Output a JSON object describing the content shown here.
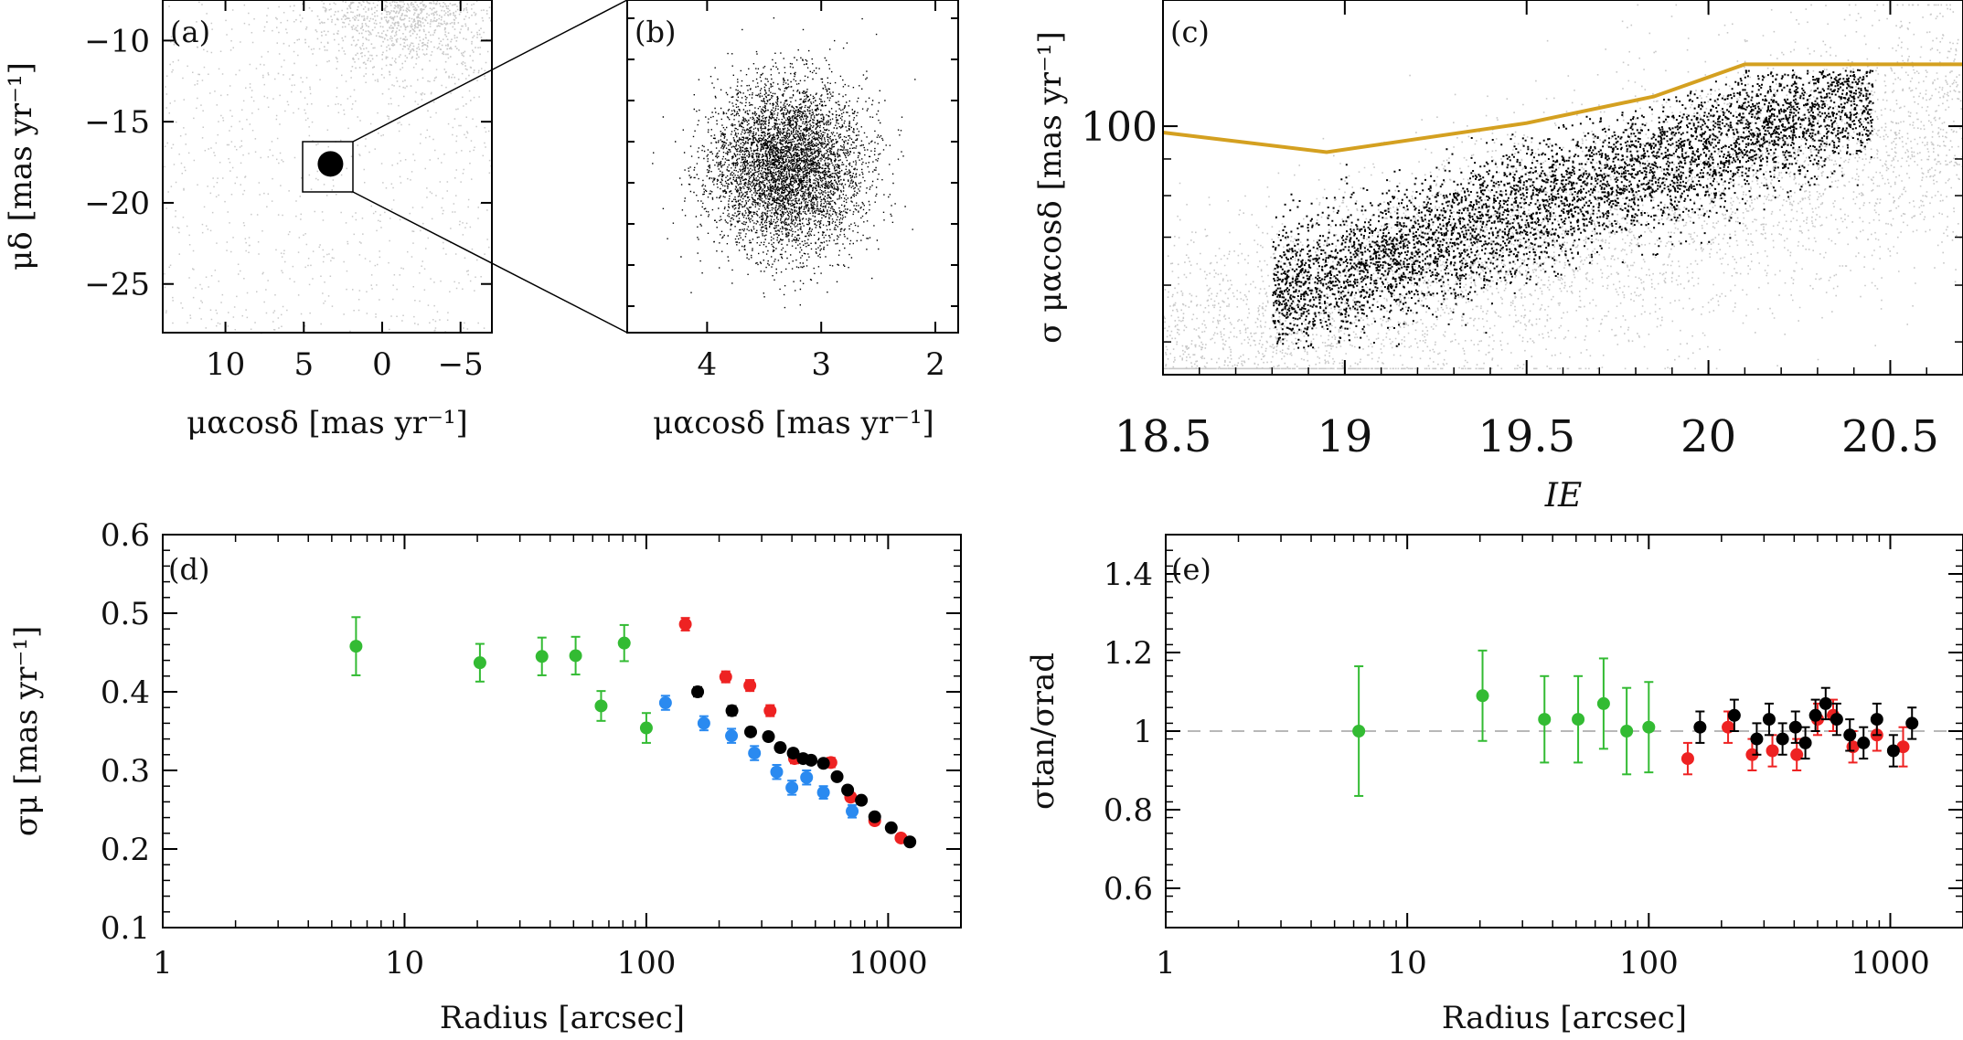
{
  "panels": {
    "a": {
      "letter": "(a)",
      "xlabel": "μαcosδ [mas yr⁻¹]",
      "ylabel": "μδ [mas yr⁻¹]"
    },
    "b": {
      "letter": "(b)",
      "xlabel": "μαcosδ [mas yr⁻¹]"
    },
    "c": {
      "letter": "(c)",
      "xlabel": "IE",
      "ylabel": "σ μαcosδ [mas yr⁻¹]"
    },
    "d": {
      "letter": "(d)",
      "xlabel": "Radius [arcsec]",
      "ylabel": "σμ [mas yr⁻¹]"
    },
    "e": {
      "letter": "(e)",
      "xlabel": "Radius [arcsec]",
      "ylabel": "σtan/σrad"
    }
  },
  "chart_data": [
    {
      "id": "a",
      "type": "scatter",
      "letter": "(a)",
      "xlabel": "μαcosδ [mas yr⁻¹]",
      "ylabel": "μδ [mas yr⁻¹]",
      "xlim": [
        14,
        -7
      ],
      "ylim": [
        -28,
        -7.5
      ],
      "xticks": [
        10,
        5,
        0,
        -5
      ],
      "yticks": [
        -10,
        -15,
        -20,
        -25
      ],
      "series": [
        {
          "role": "field",
          "color": "#c8c8c8",
          "center": [
            -1.5,
            -8.0
          ]
        },
        {
          "role": "cluster",
          "color": "#000000",
          "center": [
            3.3,
            -17.6
          ]
        }
      ],
      "zoom_box": {
        "x": [
          2.3,
          4.6
        ],
        "y": [
          -19.6,
          -15.6
        ]
      }
    },
    {
      "id": "b",
      "type": "scatter",
      "letter": "(b)",
      "xlabel": "μαcosδ [mas yr⁻¹]",
      "xlim": [
        4.7,
        1.8
      ],
      "ylim": [
        -19.6,
        -15.6
      ],
      "xticks": [
        4,
        3,
        2
      ],
      "series": [
        {
          "role": "cluster",
          "color": "#000000",
          "center": [
            3.3,
            -17.6
          ]
        }
      ]
    },
    {
      "id": "c",
      "type": "scatter",
      "letter": "(c)",
      "xlabel": "IE",
      "ylabel": "σ μαcosδ [mas yr⁻¹]",
      "xlim": [
        18.5,
        20.7
      ],
      "ylim_log": [
        45,
        150
      ],
      "xticks": [
        18.5,
        19,
        19.5,
        20,
        20.5
      ],
      "yticks": [
        100
      ],
      "cut_line": {
        "color": "#d4a020",
        "points": [
          [
            18.5,
            98
          ],
          [
            18.95,
            92
          ],
          [
            19.5,
            101
          ],
          [
            19.85,
            110
          ],
          [
            20.1,
            122
          ],
          [
            20.7,
            122
          ]
        ]
      }
    },
    {
      "id": "d",
      "type": "scatter",
      "letter": "(d)",
      "xlabel": "Radius [arcsec]",
      "ylabel": "σμ [mas yr⁻¹]",
      "xscale": "log",
      "xlim": [
        1,
        2000
      ],
      "ylim": [
        0.1,
        0.6
      ],
      "xticks": [
        1,
        10,
        100,
        1000
      ],
      "yticks": [
        0.1,
        0.2,
        0.3,
        0.4,
        0.5,
        0.6
      ],
      "series": [
        {
          "color": "#33bb33",
          "x": [
            6.3,
            20.5,
            37,
            51,
            65,
            81,
            100
          ],
          "y": [
            0.458,
            0.437,
            0.445,
            0.446,
            0.382,
            0.462,
            0.354
          ],
          "err": [
            0.037,
            0.024,
            0.024,
            0.024,
            0.019,
            0.023,
            0.019
          ]
        },
        {
          "color": "#2a8af0",
          "x": [
            120,
            173,
            225,
            280,
            346,
            400,
            460,
            540,
            710
          ],
          "y": [
            0.386,
            0.36,
            0.344,
            0.322,
            0.298,
            0.278,
            0.291,
            0.272,
            0.248
          ],
          "err": [
            0.009,
            0.009,
            0.009,
            0.009,
            0.009,
            0.009,
            0.009,
            0.008,
            0.008
          ]
        },
        {
          "color": "#ee2222",
          "x": [
            145,
            213,
            268,
            325,
            410,
            580,
            700,
            880,
            1130
          ],
          "y": [
            0.486,
            0.419,
            0.408,
            0.376,
            0.315,
            0.31,
            0.266,
            0.236,
            0.214
          ],
          "err": [
            0.008,
            0.007,
            0.007,
            0.007,
            0.006,
            0.006,
            0.005,
            0.005,
            0.004
          ]
        },
        {
          "color": "#000000",
          "x": [
            163,
            226,
            270,
            320,
            358,
            405,
            445,
            480,
            540,
            615,
            680,
            775,
            880,
            1030,
            1230
          ],
          "y": [
            0.4,
            0.376,
            0.349,
            0.343,
            0.329,
            0.322,
            0.315,
            0.313,
            0.309,
            0.292,
            0.275,
            0.262,
            0.241,
            0.227,
            0.209
          ],
          "err": [
            0.006,
            0.006,
            0.005,
            0.005,
            0.005,
            0.005,
            0.005,
            0.005,
            0.005,
            0.004,
            0.004,
            0.004,
            0.004,
            0.003,
            0.003
          ]
        }
      ]
    },
    {
      "id": "e",
      "type": "scatter",
      "letter": "(e)",
      "xlabel": "Radius [arcsec]",
      "ylabel": "σtan/σrad",
      "xscale": "log",
      "xlim": [
        1,
        2000
      ],
      "ylim": [
        0.5,
        1.5
      ],
      "xticks": [
        1,
        10,
        100,
        1000
      ],
      "yticks": [
        0.6,
        0.8,
        1,
        1.2,
        1.4
      ],
      "ytick_labels": [
        "0.6",
        "0.8",
        "1",
        "1.2",
        "1.4"
      ],
      "reference_line": 1.0,
      "series": [
        {
          "color": "#33bb33",
          "x": [
            6.3,
            20.5,
            37,
            51,
            65,
            81,
            100
          ],
          "y": [
            1.0,
            1.09,
            1.03,
            1.03,
            1.07,
            1.0,
            1.01
          ],
          "err": [
            0.165,
            0.115,
            0.11,
            0.11,
            0.115,
            0.11,
            0.115
          ]
        },
        {
          "color": "#ee2222",
          "x": [
            145,
            213,
            268,
            325,
            410,
            500,
            580,
            700,
            880,
            1130
          ],
          "y": [
            0.93,
            1.01,
            0.94,
            0.95,
            0.94,
            1.03,
            1.04,
            0.96,
            0.99,
            0.96
          ],
          "err": [
            0.04,
            0.04,
            0.04,
            0.04,
            0.04,
            0.04,
            0.04,
            0.04,
            0.04,
            0.05
          ]
        },
        {
          "color": "#000000",
          "x": [
            163,
            226,
            280,
            315,
            358,
            405,
            445,
            490,
            540,
            600,
            680,
            775,
            880,
            1030,
            1230
          ],
          "y": [
            1.01,
            1.04,
            0.98,
            1.03,
            0.98,
            1.01,
            0.97,
            1.04,
            1.07,
            1.03,
            0.99,
            0.97,
            1.03,
            0.95,
            1.02
          ],
          "err": [
            0.04,
            0.04,
            0.04,
            0.04,
            0.04,
            0.04,
            0.04,
            0.04,
            0.04,
            0.04,
            0.04,
            0.04,
            0.04,
            0.04,
            0.04
          ]
        }
      ]
    }
  ]
}
